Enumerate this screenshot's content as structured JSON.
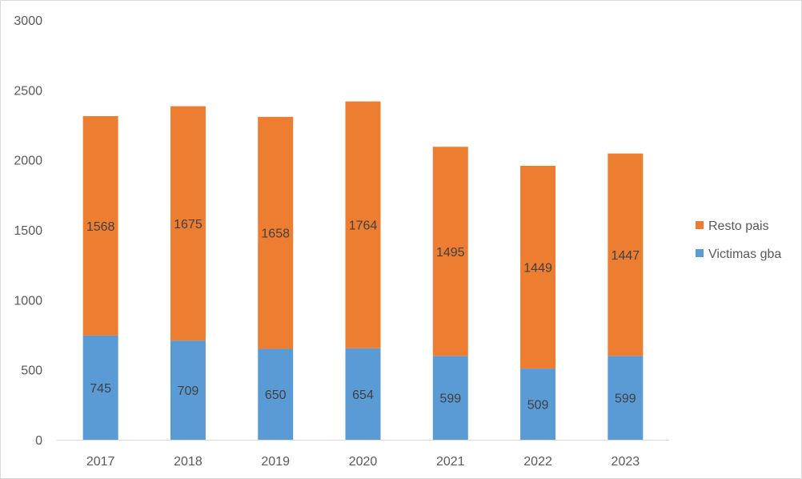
{
  "chart_data": {
    "type": "bar",
    "stacked": true,
    "categories": [
      "2017",
      "2018",
      "2019",
      "2020",
      "2021",
      "2022",
      "2023"
    ],
    "series": [
      {
        "name": "Victimas gba",
        "color": "#5b9bd5",
        "values": [
          745,
          709,
          650,
          654,
          599,
          509,
          599
        ]
      },
      {
        "name": "Resto pais",
        "color": "#ed7d31",
        "values": [
          1568,
          1675,
          1658,
          1764,
          1495,
          1449,
          1447
        ]
      }
    ],
    "ylim": [
      0,
      3000
    ],
    "yticks": [
      "0",
      "500",
      "1000",
      "1500",
      "2000",
      "2500",
      "3000"
    ],
    "grid": false,
    "legend": "right"
  }
}
